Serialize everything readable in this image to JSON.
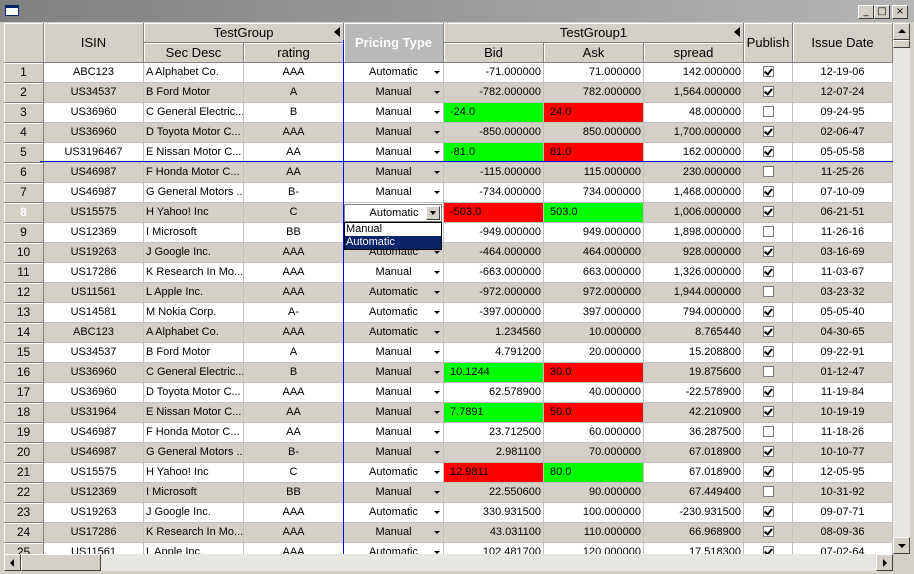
{
  "window": {
    "min": "_",
    "max": "□",
    "close": "×"
  },
  "headers": {
    "isin": "ISIN",
    "group1": "TestGroup",
    "sec_desc": "Sec Desc",
    "rating": "rating",
    "pricing_type": "Pricing Type",
    "group2": "TestGroup1",
    "bid": "Bid",
    "ask": "Ask",
    "spread": "spread",
    "publish": "Publish",
    "issue_date": "Issue Date"
  },
  "colors": {
    "green": "#00ff00",
    "red": "#ff0000",
    "stripe": "#d4d0c8",
    "white": "#ffffff",
    "selection_blue": "#0a246a"
  },
  "editor": {
    "value": "Automatic",
    "options": [
      "Manual",
      "Automatic"
    ],
    "selected": "Automatic"
  },
  "rows": [
    {
      "n": "1",
      "isin": "ABC123",
      "desc": "A Alphabet Co.",
      "rating": "AAA",
      "pricing": "Automatic",
      "bid": "-71.000000",
      "ask": "71.000000",
      "spread": "142.000000",
      "publish": true,
      "date": "12-19-06",
      "bidc": "",
      "askc": ""
    },
    {
      "n": "2",
      "isin": "US34537",
      "desc": "B Ford Motor",
      "rating": "A",
      "pricing": "Manual",
      "bid": "-782.000000",
      "ask": "782.000000",
      "spread": "1,564.000000",
      "publish": true,
      "date": "12-07-24",
      "bidc": "",
      "askc": ""
    },
    {
      "n": "3",
      "isin": "US36960",
      "desc": "C General Electric...",
      "rating": "B",
      "pricing": "Manual",
      "bid": "-24.0",
      "ask": "24.0",
      "spread": "48.000000",
      "publish": false,
      "date": "09-24-95",
      "bidc": "green",
      "askc": "red"
    },
    {
      "n": "4",
      "isin": "US36960",
      "desc": "D Toyota Motor C...",
      "rating": "AAA",
      "pricing": "Manual",
      "bid": "-850.000000",
      "ask": "850.000000",
      "spread": "1,700.000000",
      "publish": true,
      "date": "02-06-47",
      "bidc": "",
      "askc": ""
    },
    {
      "n": "5",
      "isin": "US3196467",
      "desc": "E Nissan Motor C...",
      "rating": "AA",
      "pricing": "Manual",
      "bid": "-81.0",
      "ask": "81.0",
      "spread": "162.000000",
      "publish": true,
      "date": "05-05-58",
      "bidc": "green",
      "askc": "red"
    },
    {
      "n": "6",
      "isin": "US46987",
      "desc": "F Honda Motor C...",
      "rating": "AA",
      "pricing": "Manual",
      "bid": "-115.000000",
      "ask": "115.000000",
      "spread": "230.000000",
      "publish": false,
      "date": "11-25-26",
      "bidc": "",
      "askc": ""
    },
    {
      "n": "7",
      "isin": "US46987",
      "desc": "G General Motors ...",
      "rating": "B-",
      "pricing": "Manual",
      "bid": "-734.000000",
      "ask": "734.000000",
      "spread": "1,468.000000",
      "publish": true,
      "date": "07-10-09",
      "bidc": "",
      "askc": ""
    },
    {
      "n": "8",
      "isin": "US15575",
      "desc": "H Yahoo! Inc",
      "rating": "C",
      "pricing": "Automatic",
      "bid": "-503.0",
      "ask": "503.0",
      "spread": "1,006.000000",
      "publish": true,
      "date": "06-21-51",
      "bidc": "red",
      "askc": "green",
      "active": true
    },
    {
      "n": "9",
      "isin": "US12369",
      "desc": "I Microsoft",
      "rating": "BB",
      "pricing": "Manual",
      "bid": "-949.000000",
      "ask": "949.000000",
      "spread": "1,898.000000",
      "publish": false,
      "date": "11-26-16",
      "bidc": "",
      "askc": ""
    },
    {
      "n": "10",
      "isin": "US19263",
      "desc": "J Google Inc.",
      "rating": "AAA",
      "pricing": "Automatic",
      "bid": "-464.000000",
      "ask": "464.000000",
      "spread": "928.000000",
      "publish": true,
      "date": "03-16-69",
      "bidc": "",
      "askc": ""
    },
    {
      "n": "11",
      "isin": "US17286",
      "desc": "K Research In Mo...",
      "rating": "AAA",
      "pricing": "Manual",
      "bid": "-663.000000",
      "ask": "663.000000",
      "spread": "1,326.000000",
      "publish": true,
      "date": "11-03-67",
      "bidc": "",
      "askc": ""
    },
    {
      "n": "12",
      "isin": "US11561",
      "desc": "L Apple Inc.",
      "rating": "AAA",
      "pricing": "Automatic",
      "bid": "-972.000000",
      "ask": "972.000000",
      "spread": "1,944.000000",
      "publish": false,
      "date": "03-23-32",
      "bidc": "",
      "askc": ""
    },
    {
      "n": "13",
      "isin": "US14581",
      "desc": "M Nokia Corp.",
      "rating": "A-",
      "pricing": "Automatic",
      "bid": "-397.000000",
      "ask": "397.000000",
      "spread": "794.000000",
      "publish": true,
      "date": "05-05-40",
      "bidc": "",
      "askc": ""
    },
    {
      "n": "14",
      "isin": "ABC123",
      "desc": "A Alphabet Co.",
      "rating": "AAA",
      "pricing": "Automatic",
      "bid": "1.234560",
      "ask": "10.000000",
      "spread": "8.765440",
      "publish": true,
      "date": "04-30-65",
      "bidc": "",
      "askc": ""
    },
    {
      "n": "15",
      "isin": "US34537",
      "desc": "B Ford Motor",
      "rating": "A",
      "pricing": "Manual",
      "bid": "4.791200",
      "ask": "20.000000",
      "spread": "15.208800",
      "publish": true,
      "date": "09-22-91",
      "bidc": "",
      "askc": ""
    },
    {
      "n": "16",
      "isin": "US36960",
      "desc": "C General Electric...",
      "rating": "B",
      "pricing": "Manual",
      "bid": "10.1244",
      "ask": "30.0",
      "spread": "19.875600",
      "publish": false,
      "date": "01-12-47",
      "bidc": "green",
      "askc": "red"
    },
    {
      "n": "17",
      "isin": "US36960",
      "desc": "D Toyota Motor C...",
      "rating": "AAA",
      "pricing": "Manual",
      "bid": "62.578900",
      "ask": "40.000000",
      "spread": "-22.578900",
      "publish": true,
      "date": "11-19-84",
      "bidc": "",
      "askc": ""
    },
    {
      "n": "18",
      "isin": "US31964",
      "desc": "E Nissan Motor C...",
      "rating": "AA",
      "pricing": "Manual",
      "bid": "7.7891",
      "ask": "50.0",
      "spread": "42.210900",
      "publish": true,
      "date": "10-19-19",
      "bidc": "green",
      "askc": "red"
    },
    {
      "n": "19",
      "isin": "US46987",
      "desc": "F Honda Motor C...",
      "rating": "AA",
      "pricing": "Manual",
      "bid": "23.712500",
      "ask": "60.000000",
      "spread": "36.287500",
      "publish": false,
      "date": "11-18-26",
      "bidc": "",
      "askc": ""
    },
    {
      "n": "20",
      "isin": "US46987",
      "desc": "G General Motors ...",
      "rating": "B-",
      "pricing": "Manual",
      "bid": "2.981100",
      "ask": "70.000000",
      "spread": "67.018900",
      "publish": true,
      "date": "10-10-77",
      "bidc": "",
      "askc": ""
    },
    {
      "n": "21",
      "isin": "US15575",
      "desc": "H Yahoo! Inc",
      "rating": "C",
      "pricing": "Automatic",
      "bid": "12.9811",
      "ask": "80.0",
      "spread": "67.018900",
      "publish": true,
      "date": "12-05-95",
      "bidc": "red",
      "askc": "green"
    },
    {
      "n": "22",
      "isin": "US12369",
      "desc": "I Microsoft",
      "rating": "BB",
      "pricing": "Manual",
      "bid": "22.550600",
      "ask": "90.000000",
      "spread": "67.449400",
      "publish": false,
      "date": "10-31-92",
      "bidc": "",
      "askc": ""
    },
    {
      "n": "23",
      "isin": "US19263",
      "desc": "J Google Inc.",
      "rating": "AAA",
      "pricing": "Automatic",
      "bid": "330.931500",
      "ask": "100.000000",
      "spread": "-230.931500",
      "publish": true,
      "date": "09-07-71",
      "bidc": "",
      "askc": ""
    },
    {
      "n": "24",
      "isin": "US17286",
      "desc": "K Research In Mo...",
      "rating": "AAA",
      "pricing": "Manual",
      "bid": "43.031100",
      "ask": "110.000000",
      "spread": "66.968900",
      "publish": true,
      "date": "08-09-36",
      "bidc": "",
      "askc": ""
    },
    {
      "n": "25",
      "isin": "US11561",
      "desc": "L Apple Inc.",
      "rating": "AAA",
      "pricing": "Automatic",
      "bid": "102.481700",
      "ask": "120.000000",
      "spread": "17.518300",
      "publish": true,
      "date": "07-02-64",
      "bidc": "",
      "askc": ""
    }
  ]
}
